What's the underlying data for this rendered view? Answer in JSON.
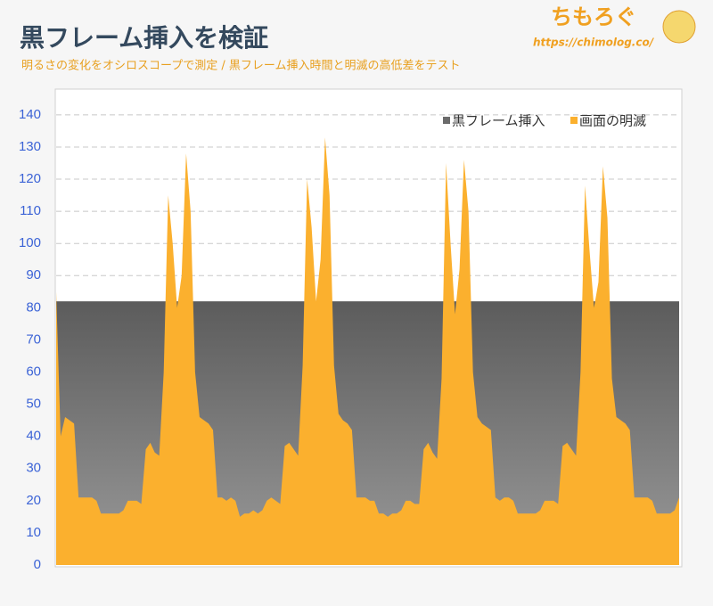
{
  "chart_data": {
    "type": "area",
    "title": "黒フレーム挿入を検証",
    "subtitle": "明るさの変化をオシロスコープで測定 / 黒フレーム挿入時間と明滅の高低差をテスト",
    "brand": "ちもろぐ",
    "url": "https://chimolog.co/",
    "legend": "top-right",
    "grid": true,
    "ylim": [
      0,
      148
    ],
    "yticks": [
      0,
      10,
      20,
      30,
      40,
      50,
      60,
      70,
      80,
      90,
      100,
      110,
      120,
      130,
      140
    ],
    "series": [
      {
        "name": "黒フレーム挿入",
        "color": "#6b6b6b",
        "values": [
          82,
          82,
          82,
          82,
          82,
          82,
          82,
          82,
          82,
          82,
          82,
          82,
          82,
          82,
          82,
          82,
          82,
          82,
          82,
          82,
          82,
          82,
          82,
          82,
          82,
          82,
          82,
          82,
          82,
          82,
          82,
          82,
          82,
          82,
          82,
          82,
          82,
          82,
          82,
          82,
          82,
          82,
          82,
          82,
          82,
          82,
          82,
          82,
          82,
          82,
          82,
          82,
          82,
          82,
          82,
          82,
          82,
          82,
          82,
          82,
          82,
          82,
          82,
          82,
          82,
          82,
          82,
          82,
          82,
          82,
          82,
          82,
          82,
          82,
          82,
          82,
          82,
          82,
          82,
          82,
          82,
          82,
          82,
          82,
          82,
          82,
          82,
          82,
          82,
          82,
          82,
          82,
          82,
          82,
          82,
          82,
          82,
          82,
          82,
          82,
          82,
          82,
          82,
          82,
          82,
          82,
          82,
          82,
          82,
          82,
          82,
          82,
          82,
          82,
          82,
          82,
          82,
          82,
          82,
          82,
          82,
          82,
          82,
          82,
          82,
          82,
          82,
          82,
          82,
          82,
          82,
          82,
          82,
          82,
          82,
          82,
          82,
          82,
          82,
          82
        ]
      },
      {
        "name": "画面の明滅",
        "color": "#fbb02e",
        "values": [
          85,
          40,
          46,
          45,
          44,
          21,
          21,
          21,
          21,
          20,
          16,
          16,
          16,
          16,
          16,
          17,
          20,
          20,
          20,
          19,
          36,
          38,
          35,
          34,
          60,
          115,
          100,
          80,
          90,
          128,
          110,
          60,
          46,
          45,
          44,
          42,
          21,
          21,
          20,
          21,
          20,
          15,
          16,
          16,
          17,
          16,
          17,
          20,
          21,
          20,
          19,
          37,
          38,
          36,
          34,
          62,
          120,
          105,
          82,
          95,
          133,
          115,
          62,
          47,
          45,
          44,
          42,
          21,
          21,
          21,
          20,
          20,
          16,
          16,
          15,
          16,
          16,
          17,
          20,
          20,
          19,
          19,
          36,
          38,
          35,
          33,
          58,
          125,
          100,
          78,
          92,
          126,
          110,
          60,
          46,
          44,
          43,
          42,
          21,
          20,
          21,
          21,
          20,
          16,
          16,
          16,
          16,
          16,
          17,
          20,
          20,
          20,
          19,
          37,
          38,
          36,
          34,
          60,
          118,
          98,
          80,
          88,
          124,
          108,
          58,
          46,
          45,
          44,
          42,
          21,
          21,
          21,
          21,
          20,
          16,
          16,
          16,
          16,
          17,
          21
        ]
      }
    ]
  }
}
